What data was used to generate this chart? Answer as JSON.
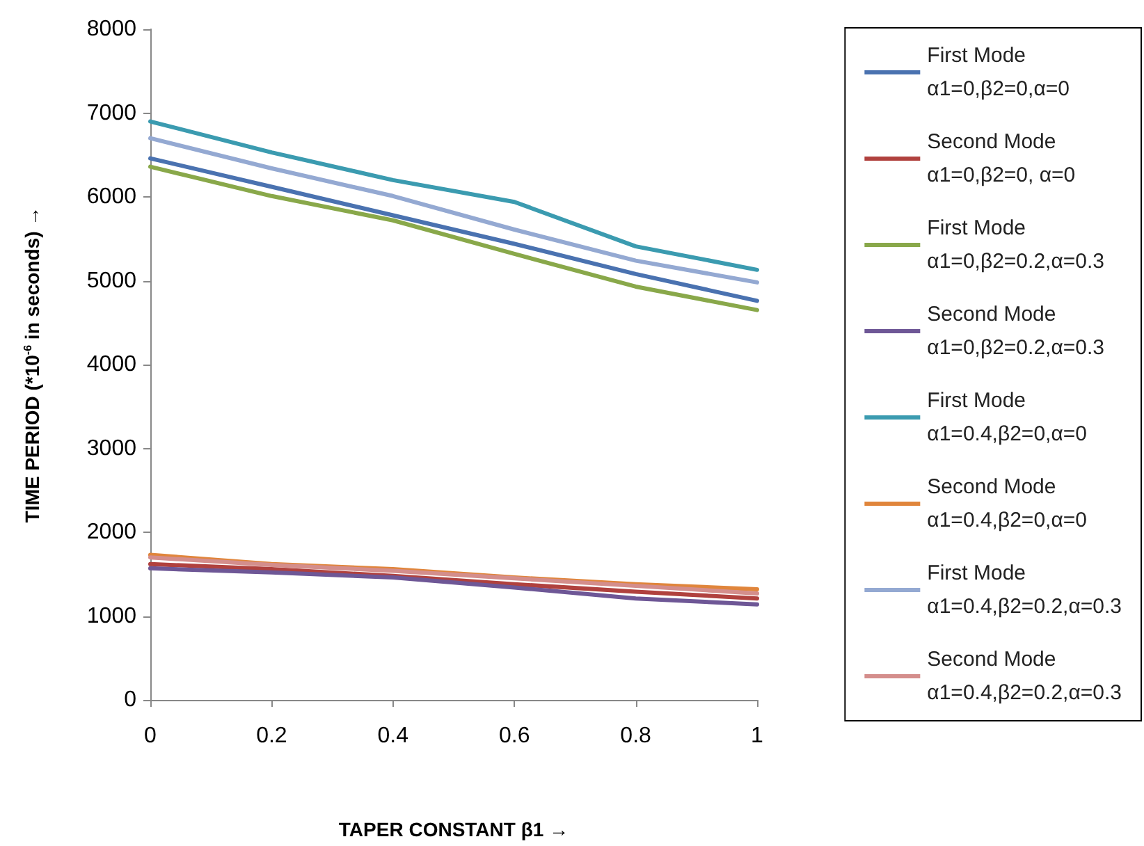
{
  "chart_data": {
    "type": "line",
    "xlabel": "TAPER CONSTANT β1 →",
    "ylabel": "TIME PERIOD (*10$^{-6}$ in seconds) →",
    "x": [
      0,
      0.2,
      0.4,
      0.6,
      0.8,
      1
    ],
    "xlim": [
      0,
      1
    ],
    "xticks": [
      0,
      0.2,
      0.4,
      0.6,
      0.8,
      1
    ],
    "ylim": [
      0,
      8000
    ],
    "yticks": [
      0,
      1000,
      2000,
      3000,
      4000,
      5000,
      6000,
      7000,
      8000
    ],
    "grid": false,
    "legend": "right",
    "marker": "none",
    "line_style": "solid",
    "series": [
      {
        "name": "First Mode\nα1=0,β2=0,α=0",
        "color": "#4a72b0",
        "values": [
          6460,
          6120,
          5780,
          5440,
          5080,
          4760
        ]
      },
      {
        "name": "Second Mode\nα1=0,β2=0, α=0",
        "color": "#b0413e",
        "values": [
          1620,
          1560,
          1480,
          1380,
          1290,
          1210
        ]
      },
      {
        "name": "First Mode\nα1=0,β2=0.2,α=0.3",
        "color": "#89a84a",
        "values": [
          6360,
          6010,
          5720,
          5320,
          4930,
          4650
        ]
      },
      {
        "name": "Second Mode\nα1=0,β2=0.2,α=0.3",
        "color": "#6e5796",
        "values": [
          1570,
          1520,
          1460,
          1340,
          1210,
          1140
        ]
      },
      {
        "name": "First Mode\nα1=0.4,β2=0,α=0",
        "color": "#3b9bb0",
        "values": [
          6900,
          6530,
          6200,
          5940,
          5410,
          5130
        ]
      },
      {
        "name": "Second Mode\nα1=0.4,β2=0,α=0",
        "color": "#e0853b",
        "values": [
          1730,
          1620,
          1560,
          1460,
          1380,
          1320
        ]
      },
      {
        "name": "First Mode\nα1=0.4,β2=0.2,α=0.3",
        "color": "#94a9d2",
        "values": [
          6700,
          6340,
          6010,
          5610,
          5240,
          4980
        ]
      },
      {
        "name": "Second Mode\nα1=0.4,β2=0.2,α=0.3",
        "color": "#d48e8c",
        "values": [
          1700,
          1610,
          1540,
          1450,
          1360,
          1270
        ]
      }
    ]
  }
}
